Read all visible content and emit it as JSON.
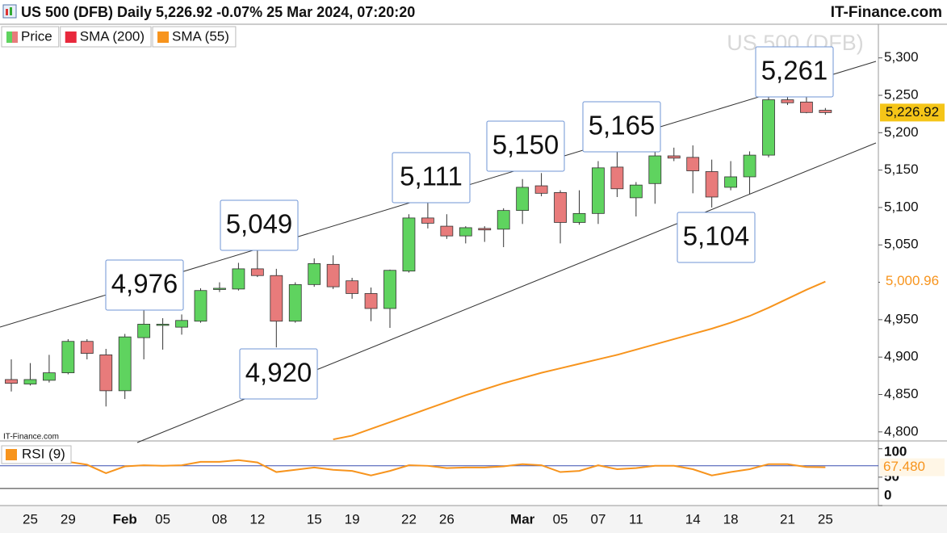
{
  "title": "US 500 (DFB) Daily 5,226.92 -0.07% 25 Mar 2024, 07:20:20",
  "source": "IT-Finance.com",
  "chart_data": [
    {
      "type": "candlestick",
      "watermark": "US 500 (DFB)",
      "credit": "IT-Finance.com",
      "categories": [
        null,
        "25",
        null,
        "29",
        null,
        null,
        "Feb",
        null,
        "05",
        null,
        null,
        "08",
        null,
        "12",
        null,
        null,
        "15",
        null,
        "19",
        null,
        null,
        "22",
        null,
        "26",
        null,
        null,
        null,
        "Mar",
        null,
        "05",
        null,
        "07",
        null,
        "11",
        null,
        null,
        "14",
        null,
        "18",
        null,
        null,
        "21",
        null,
        "25"
      ],
      "series": [
        {
          "name": "Price",
          "up_color": "#5fd35f",
          "down_color": "#e87b7b",
          "last_label": "5,226.92",
          "label_color": "#f5c518",
          "open": [
            4870,
            4864,
            4869,
            4879,
            4921,
            4903,
            4855,
            4926,
            4943,
            4940,
            4948,
            4991,
            4991,
            5018,
            5009,
            4948,
            4997,
            5024,
            5002,
            4985,
            4965,
            5015,
            5086,
            5075,
            5062,
            5072,
            5071,
            5096,
            5129,
            5120,
            5080,
            5092,
            5154,
            5113,
            5132,
            5169,
            5167,
            5148,
            5127,
            5141,
            5170,
            5244,
            5241,
            5230
          ],
          "high": [
            4897,
            4892,
            4903,
            4924,
            4924,
            4911,
            4931,
            4971,
            4952,
            4957,
            4992,
            5000,
            5026,
            5043,
            5018,
            5000,
            5032,
            5036,
            5006,
            4993,
            5017,
            5091,
            5134,
            5091,
            5075,
            5075,
            5099,
            5138,
            5146,
            5123,
            5123,
            5162,
            5186,
            5134,
            5175,
            5180,
            5183,
            5164,
            5162,
            5175,
            5248,
            5259,
            5248,
            5233
          ],
          "low": [
            4854,
            4862,
            4866,
            4877,
            4897,
            4834,
            4844,
            4897,
            4910,
            4930,
            4946,
            4987,
            4989,
            5007,
            4913,
            4946,
            4994,
            4991,
            4978,
            4948,
            4939,
            5013,
            5072,
            5058,
            5052,
            5054,
            5047,
            5078,
            5115,
            5052,
            5077,
            5078,
            5114,
            5088,
            5105,
            5162,
            5119,
            5100,
            5123,
            5118,
            5167,
            5237,
            5226,
            5224
          ],
          "close": [
            4865,
            4870,
            4879,
            4921,
            4905,
            4855,
            4927,
            4944,
            4944,
            4949,
            4989,
            4992,
            5018,
            5009,
            4948,
            4997,
            5025,
            4994,
            4985,
            4965,
            5016,
            5086,
            5079,
            5062,
            5073,
            5070,
            5096,
            5127,
            5119,
            5080,
            5092,
            5153,
            5125,
            5130,
            5169,
            5166,
            5149,
            5114,
            5141,
            5170,
            5244,
            5240,
            5227,
            5226.92
          ]
        },
        {
          "name": "SMA (200)",
          "color": "#e8283c",
          "values": [
            null,
            null,
            null,
            null,
            null,
            null,
            null,
            null,
            null,
            null,
            null,
            null,
            null,
            null,
            null,
            null,
            null,
            null,
            null,
            null,
            null,
            null,
            null,
            null,
            null,
            null,
            null,
            null,
            null,
            null,
            null,
            null,
            null,
            null,
            null,
            null,
            null,
            null,
            null,
            null,
            null,
            null,
            null,
            null
          ]
        },
        {
          "name": "SMA (55)",
          "color": "#f7941d",
          "last_label": "5,000.96",
          "values": [
            null,
            null,
            null,
            null,
            null,
            null,
            null,
            null,
            null,
            null,
            null,
            null,
            null,
            null,
            null,
            null,
            null,
            4790,
            4795,
            4804,
            4813,
            4822,
            4831,
            4840,
            4849,
            4857,
            4865,
            4872,
            4879,
            4885,
            4891,
            4897,
            4903,
            4910,
            4917,
            4924,
            4931,
            4938,
            4946,
            4955,
            4966,
            4978,
            4990,
            5000.96
          ]
        }
      ],
      "annotations": [
        "4,976",
        "5,049",
        "5,111",
        "5,150",
        "5,165",
        "5,261",
        "4,920",
        "5,104"
      ],
      "ylim": [
        4789,
        5345
      ],
      "yticks": [
        {
          "value": 5300,
          "label": "5,300"
        },
        {
          "value": 5250,
          "label": "5,250"
        },
        {
          "value": 5200,
          "label": "5,200"
        },
        {
          "value": 5150,
          "label": "5,150"
        },
        {
          "value": 5100,
          "label": "5,100"
        },
        {
          "value": 5050,
          "label": "5,050"
        },
        {
          "value": 5000,
          "label": "5,000"
        },
        {
          "value": 4950,
          "label": "4,950"
        },
        {
          "value": 4900,
          "label": "4,900"
        },
        {
          "value": 4850,
          "label": "4,850"
        },
        {
          "value": 4800,
          "label": "4,800"
        }
      ]
    },
    {
      "type": "line",
      "series": [
        {
          "name": "RSI (9)",
          "color": "#f7941d",
          "last_label": "67.480",
          "values": [
            null,
            null,
            null,
            77,
            72,
            57,
            69,
            71,
            70,
            71,
            77,
            77,
            80,
            76,
            59,
            63,
            67,
            63,
            61,
            53,
            61,
            71,
            70,
            66,
            67,
            67,
            69,
            73,
            71,
            59,
            61,
            71,
            64,
            66,
            70,
            70,
            64,
            53,
            59,
            64,
            73,
            73,
            68,
            67.48
          ]
        }
      ],
      "levels": [
        30,
        70
      ],
      "ylim": [
        0,
        111
      ],
      "yticks": [
        0,
        50,
        100
      ]
    }
  ]
}
